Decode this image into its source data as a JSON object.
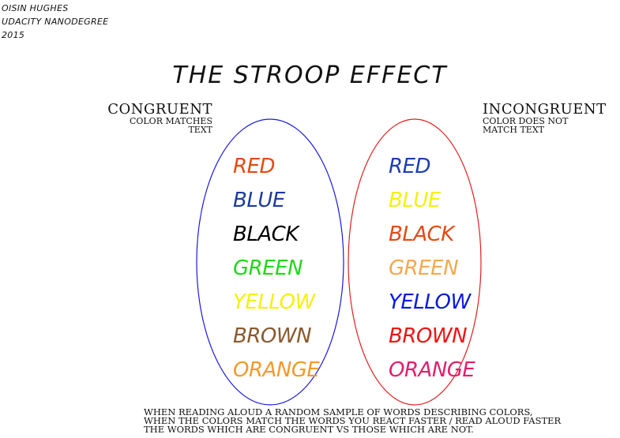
{
  "credits": [
    "OISIN HUGHES",
    "UDACITY NANODEGREE",
    "2015"
  ],
  "title": "THE STROOP EFFECT",
  "congruent": {
    "heading": "CONGRUENT",
    "desc": [
      "COLOR MATCHES",
      "TEXT"
    ],
    "oval_color": "#1a1adc",
    "words": [
      {
        "text": "RED",
        "color": "#e34a12"
      },
      {
        "text": "BLUE",
        "color": "#1c3c9c"
      },
      {
        "text": "BLACK",
        "color": "#000000"
      },
      {
        "text": "GREEN",
        "color": "#22d61a"
      },
      {
        "text": "YELLOW",
        "color": "#f4f20a"
      },
      {
        "text": "BROWN",
        "color": "#8a5a2e"
      },
      {
        "text": "ORANGE",
        "color": "#f39a2a"
      }
    ]
  },
  "incongruent": {
    "heading": "INCONGRUENT",
    "desc": [
      "COLOR DOES NOT",
      "MATCH TEXT"
    ],
    "oval_color": "#e02020",
    "words": [
      {
        "text": "RED",
        "color": "#1c3cb4"
      },
      {
        "text": "BLUE",
        "color": "#f4f20a"
      },
      {
        "text": "BLACK",
        "color": "#e34a12"
      },
      {
        "text": "GREEN",
        "color": "#f6a84e"
      },
      {
        "text": "YELLOW",
        "color": "#0a1adc"
      },
      {
        "text": "BROWN",
        "color": "#f01414"
      },
      {
        "text": "ORANGE",
        "color": "#e0206c"
      }
    ]
  },
  "note": [
    "WHEN READING ALOUD A RANDOM SAMPLE OF WORDS DESCRIBING COLORS,",
    "WHEN THE COLORS MATCH THE WORDS YOU REACT FASTER / READ ALOUD FASTER",
    "THE WORDS WHICH ARE CONGRUENT VS THOSE WHICH ARE NOT."
  ]
}
